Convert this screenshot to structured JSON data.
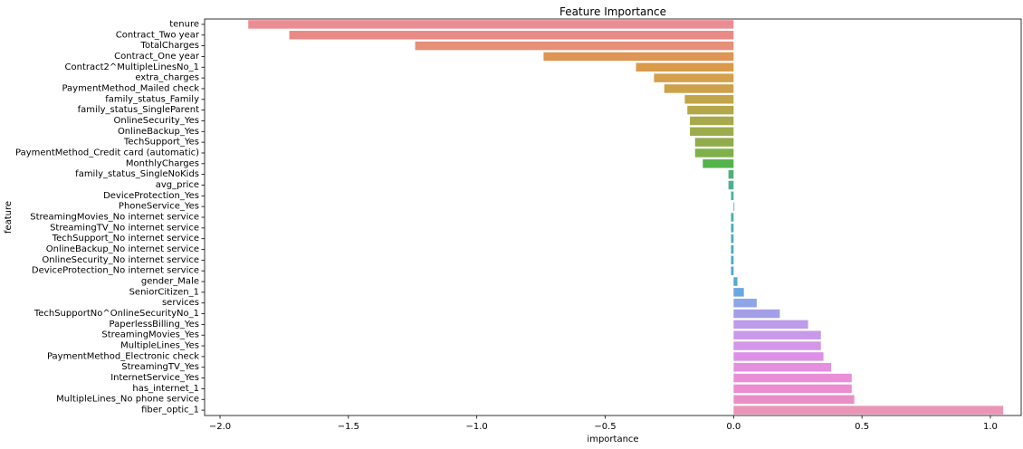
{
  "chart_data": {
    "type": "bar",
    "orientation": "horizontal",
    "title": "Feature Importance",
    "xlabel": "importance",
    "ylabel": "feature",
    "xlim": [
      -2.06,
      1.12
    ],
    "xticks": [
      -2.0,
      -1.5,
      -1.0,
      -0.5,
      0.0,
      0.5,
      1.0
    ],
    "xtick_labels": [
      "−2.0",
      "−1.5",
      "−1.0",
      "−0.5",
      "0.0",
      "0.5",
      "1.0"
    ],
    "grid": false,
    "categories": [
      "tenure",
      "Contract_Two year",
      "TotalCharges",
      "Contract_One year",
      "Contract2^MultipleLinesNo_1",
      "extra_charges",
      "PaymentMethod_Mailed check",
      "family_status_Family",
      "family_status_SingleParent",
      "OnlineSecurity_Yes",
      "OnlineBackup_Yes",
      "TechSupport_Yes",
      "PaymentMethod_Credit card (automatic)",
      "MonthlyCharges",
      "family_status_SingleNoKids",
      "avg_price",
      "DeviceProtection_Yes",
      "PhoneService_Yes",
      "StreamingMovies_No internet service",
      "StreamingTV_No internet service",
      "TechSupport_No internet service",
      "OnlineBackup_No internet service",
      "OnlineSecurity_No internet service",
      "DeviceProtection_No internet service",
      "gender_Male",
      "SeniorCitizen_1",
      "services",
      "TechSupportNo^OnlineSecurityNo_1",
      "PaperlessBilling_Yes",
      "StreamingMovies_Yes",
      "MultipleLines_Yes",
      "PaymentMethod_Electronic check",
      "StreamingTV_Yes",
      "InternetService_Yes",
      "has_internet_1",
      "MultipleLines_No phone service",
      "fiber_optic_1"
    ],
    "values": [
      -1.89,
      -1.73,
      -1.24,
      -0.74,
      -0.38,
      -0.31,
      -0.27,
      -0.19,
      -0.18,
      -0.17,
      -0.17,
      -0.15,
      -0.15,
      -0.12,
      -0.02,
      -0.02,
      -0.01,
      0.0,
      -0.01,
      -0.01,
      -0.01,
      -0.01,
      -0.01,
      -0.01,
      0.015,
      0.04,
      0.09,
      0.18,
      0.29,
      0.34,
      0.34,
      0.35,
      0.38,
      0.46,
      0.46,
      0.47,
      1.05
    ],
    "colors": [
      "#eb8e93",
      "#ea8a86",
      "#e68f79",
      "#de9555",
      "#d99a49",
      "#d4a04b",
      "#cda14b",
      "#c2a549",
      "#b4a749",
      "#a7a94c",
      "#9cab4c",
      "#90ac4c",
      "#7eb14b",
      "#54b34a",
      "#4fb17a",
      "#4cb18d",
      "#4fb19c",
      "#4eb0a8",
      "#4caead",
      "#4badb3",
      "#4cacb6",
      "#4dabb9",
      "#4eaabd",
      "#4fa9c0",
      "#55a8d0",
      "#6aa6e1",
      "#8ea5e8",
      "#a49ee9",
      "#bd9cea",
      "#c999e9",
      "#d596e9",
      "#dd91e6",
      "#e68fe0",
      "#e98ed7",
      "#ea8ecf",
      "#ea8fc5",
      "#eb95b6"
    ]
  }
}
